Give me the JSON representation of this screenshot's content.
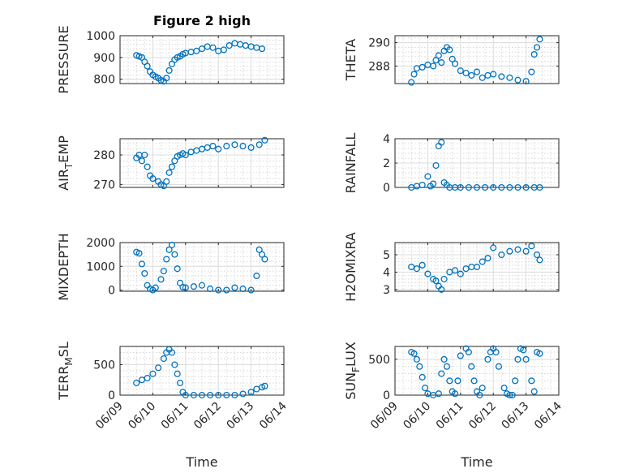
{
  "title": "Figure 2 high",
  "xlabel": "Time",
  "x_ticks": [
    "06/09",
    "06/10",
    "06/11",
    "06/12",
    "06/13",
    "06/14"
  ],
  "marker_color": "#0072BD",
  "chart_data": [
    {
      "type": "scatter",
      "ylabel": "PRESSURE",
      "ylim": [
        780,
        1000
      ],
      "yticks": [
        800,
        900,
        1000
      ],
      "grid": true,
      "x": [
        "06/09 12:00",
        "06/09 14:00",
        "06/09 16:00",
        "06/09 18:00",
        "06/09 20:00",
        "06/09 22:00",
        "06/10 00:00",
        "06/10 02:00",
        "06/10 04:00",
        "06/10 06:00",
        "06/10 08:00",
        "06/10 10:00",
        "06/10 12:00",
        "06/10 14:00",
        "06/10 16:00",
        "06/10 18:00",
        "06/10 20:00",
        "06/10 22:00",
        "06/11 00:00",
        "06/11 04:00",
        "06/11 08:00",
        "06/11 12:00",
        "06/11 16:00",
        "06/11 20:00",
        "06/12 00:00",
        "06/12 04:00",
        "06/12 08:00",
        "06/12 12:00",
        "06/12 16:00",
        "06/12 20:00",
        "06/13 00:00",
        "06/13 04:00",
        "06/13 08:00"
      ],
      "y": [
        910,
        905,
        900,
        880,
        860,
        835,
        820,
        812,
        805,
        795,
        790,
        805,
        840,
        870,
        890,
        900,
        905,
        915,
        920,
        925,
        930,
        940,
        950,
        945,
        930,
        935,
        955,
        965,
        960,
        955,
        950,
        945,
        940
      ]
    },
    {
      "type": "scatter",
      "ylabel": "THETA",
      "ylim": [
        286.5,
        290.6
      ],
      "yticks": [
        288,
        290
      ],
      "grid": true,
      "x": [
        "06/09 12:00",
        "06/09 14:00",
        "06/09 16:00",
        "06/09 20:00",
        "06/10 00:00",
        "06/10 04:00",
        "06/10 06:00",
        "06/10 08:00",
        "06/10 10:00",
        "06/10 12:00",
        "06/10 14:00",
        "06/10 16:00",
        "06/10 18:00",
        "06/10 20:00",
        "06/11 00:00",
        "06/11 04:00",
        "06/11 08:00",
        "06/11 12:00",
        "06/11 16:00",
        "06/11 20:00",
        "06/12 00:00",
        "06/12 06:00",
        "06/12 12:00",
        "06/12 18:00",
        "06/13 00:00",
        "06/13 04:00",
        "06/13 06:00",
        "06/13 08:00",
        "06/13 10:00"
      ],
      "y": [
        286.6,
        287.3,
        287.8,
        287.9,
        288.1,
        288.0,
        288.5,
        288.9,
        288.3,
        289.3,
        289.6,
        289.4,
        288.6,
        288.2,
        287.6,
        287.4,
        287.2,
        287.5,
        287.0,
        287.2,
        287.3,
        287.1,
        287.0,
        286.8,
        286.7,
        287.5,
        289.0,
        289.6,
        290.3
      ]
    },
    {
      "type": "scatter",
      "ylabel": "AIR_TEMP",
      "ylim": [
        269,
        285.5
      ],
      "yticks": [
        270,
        280
      ],
      "grid": true,
      "x": [
        "06/09 12:00",
        "06/09 14:00",
        "06/09 16:00",
        "06/09 18:00",
        "06/09 20:00",
        "06/09 22:00",
        "06/10 00:00",
        "06/10 04:00",
        "06/10 06:00",
        "06/10 08:00",
        "06/10 10:00",
        "06/10 12:00",
        "06/10 14:00",
        "06/10 16:00",
        "06/10 18:00",
        "06/10 20:00",
        "06/10 22:00",
        "06/11 00:00",
        "06/11 04:00",
        "06/11 08:00",
        "06/11 12:00",
        "06/11 16:00",
        "06/11 20:00",
        "06/12 00:00",
        "06/12 06:00",
        "06/12 12:00",
        "06/12 18:00",
        "06/13 00:00",
        "06/13 06:00",
        "06/13 10:00"
      ],
      "y": [
        279,
        280,
        278,
        280,
        276,
        273,
        272,
        271,
        270,
        269.5,
        271,
        274,
        276,
        278,
        279.5,
        280,
        280.5,
        280,
        281,
        281.5,
        282,
        282.5,
        283,
        282,
        283,
        283.5,
        283,
        282.5,
        283.5,
        285
      ]
    },
    {
      "type": "scatter",
      "ylabel": "RAINFALL",
      "ylim": [
        0,
        4
      ],
      "yticks": [
        0,
        2,
        4
      ],
      "grid": true,
      "x": [
        "06/09 12:00",
        "06/09 16:00",
        "06/09 20:00",
        "06/10 00:00",
        "06/10 02:00",
        "06/10 04:00",
        "06/10 06:00",
        "06/10 08:00",
        "06/10 10:00",
        "06/10 12:00",
        "06/10 14:00",
        "06/10 16:00",
        "06/10 20:00",
        "06/11 00:00",
        "06/11 06:00",
        "06/11 12:00",
        "06/11 18:00",
        "06/12 00:00",
        "06/12 06:00",
        "06/12 12:00",
        "06/12 18:00",
        "06/13 00:00",
        "06/13 06:00",
        "06/13 10:00"
      ],
      "y": [
        0,
        0.1,
        0.2,
        0.9,
        0.1,
        0.3,
        1.8,
        3.4,
        3.7,
        0.4,
        0.2,
        0,
        0,
        0,
        0,
        0,
        0,
        0,
        0,
        0,
        0,
        0,
        0,
        0
      ]
    },
    {
      "type": "scatter",
      "ylabel": "MIXDEPTH",
      "ylim": [
        -50,
        2000
      ],
      "yticks": [
        0,
        1000,
        2000
      ],
      "grid": true,
      "x": [
        "06/09 12:00",
        "06/09 14:00",
        "06/09 16:00",
        "06/09 18:00",
        "06/09 20:00",
        "06/09 22:00",
        "06/10 00:00",
        "06/10 02:00",
        "06/10 06:00",
        "06/10 08:00",
        "06/10 10:00",
        "06/10 12:00",
        "06/10 14:00",
        "06/10 16:00",
        "06/10 18:00",
        "06/10 20:00",
        "06/10 22:00",
        "06/11 00:00",
        "06/11 06:00",
        "06/11 12:00",
        "06/11 18:00",
        "06/12 00:00",
        "06/12 06:00",
        "06/12 12:00",
        "06/12 18:00",
        "06/13 00:00",
        "06/13 04:00",
        "06/13 06:00",
        "06/13 08:00",
        "06/13 10:00"
      ],
      "y": [
        1600,
        1550,
        1100,
        700,
        200,
        50,
        0,
        100,
        450,
        800,
        1300,
        1700,
        1900,
        1500,
        900,
        300,
        120,
        100,
        150,
        200,
        50,
        0,
        0,
        100,
        50,
        0,
        600,
        1700,
        1500,
        1300
      ]
    },
    {
      "type": "scatter",
      "ylabel": "H2OMIXRA",
      "ylim": [
        2.9,
        5.7
      ],
      "yticks": [
        3,
        4,
        5
      ],
      "grid": true,
      "x": [
        "06/09 12:00",
        "06/09 16:00",
        "06/09 20:00",
        "06/10 00:00",
        "06/10 04:00",
        "06/10 06:00",
        "06/10 08:00",
        "06/10 10:00",
        "06/10 12:00",
        "06/10 16:00",
        "06/10 20:00",
        "06/11 00:00",
        "06/11 04:00",
        "06/11 08:00",
        "06/11 12:00",
        "06/11 16:00",
        "06/11 20:00",
        "06/12 00:00",
        "06/12 06:00",
        "06/12 12:00",
        "06/12 18:00",
        "06/13 00:00",
        "06/13 04:00",
        "06/13 08:00",
        "06/13 10:00"
      ],
      "y": [
        4.3,
        4.2,
        4.4,
        3.9,
        3.6,
        3.5,
        3.2,
        3.0,
        3.6,
        4.0,
        4.1,
        3.9,
        4.2,
        4.3,
        4.3,
        4.6,
        4.8,
        5.4,
        5.0,
        5.2,
        5.3,
        5.2,
        5.5,
        5.0,
        4.7
      ]
    },
    {
      "type": "scatter",
      "ylabel": "TERR_MSL",
      "ylim": [
        0,
        800
      ],
      "yticks": [
        0,
        500
      ],
      "grid": true,
      "x": [
        "06/09 12:00",
        "06/09 16:00",
        "06/09 20:00",
        "06/10 00:00",
        "06/10 04:00",
        "06/10 08:00",
        "06/10 10:00",
        "06/10 12:00",
        "06/10 14:00",
        "06/10 16:00",
        "06/10 18:00",
        "06/10 20:00",
        "06/10 22:00",
        "06/11 00:00",
        "06/11 06:00",
        "06/11 12:00",
        "06/11 18:00",
        "06/12 00:00",
        "06/12 06:00",
        "06/12 12:00",
        "06/12 18:00",
        "06/13 00:00",
        "06/13 04:00",
        "06/13 08:00",
        "06/13 10:00"
      ],
      "y": [
        200,
        250,
        280,
        350,
        450,
        600,
        700,
        750,
        700,
        500,
        350,
        200,
        50,
        0,
        0,
        0,
        0,
        0,
        0,
        0,
        20,
        50,
        100,
        130,
        150
      ]
    },
    {
      "type": "scatter",
      "ylabel": "SUN_FLUX",
      "ylim": [
        0,
        680
      ],
      "yticks": [
        0,
        500
      ],
      "grid": true,
      "x": [
        "06/09 12:00",
        "06/09 14:00",
        "06/09 16:00",
        "06/09 18:00",
        "06/09 20:00",
        "06/09 22:00",
        "06/10 00:00",
        "06/10 04:00",
        "06/10 08:00",
        "06/10 10:00",
        "06/10 12:00",
        "06/10 14:00",
        "06/10 16:00",
        "06/10 18:00",
        "06/10 20:00",
        "06/10 22:00",
        "06/11 00:00",
        "06/11 04:00",
        "06/11 06:00",
        "06/11 08:00",
        "06/11 10:00",
        "06/11 12:00",
        "06/11 14:00",
        "06/11 16:00",
        "06/11 20:00",
        "06/11 22:00",
        "06/12 00:00",
        "06/12 02:00",
        "06/12 04:00",
        "06/12 08:00",
        "06/12 10:00",
        "06/12 12:00",
        "06/12 14:00",
        "06/12 16:00",
        "06/12 18:00",
        "06/12 20:00",
        "06/12 22:00",
        "06/13 00:00",
        "06/13 04:00",
        "06/13 06:00",
        "06/13 08:00",
        "06/13 10:00"
      ],
      "y": [
        600,
        580,
        500,
        400,
        250,
        100,
        20,
        0,
        20,
        300,
        500,
        400,
        200,
        50,
        20,
        200,
        550,
        650,
        600,
        400,
        200,
        50,
        0,
        100,
        500,
        600,
        650,
        600,
        400,
        100,
        20,
        0,
        0,
        200,
        500,
        650,
        630,
        500,
        200,
        50,
        600,
        580
      ]
    }
  ]
}
